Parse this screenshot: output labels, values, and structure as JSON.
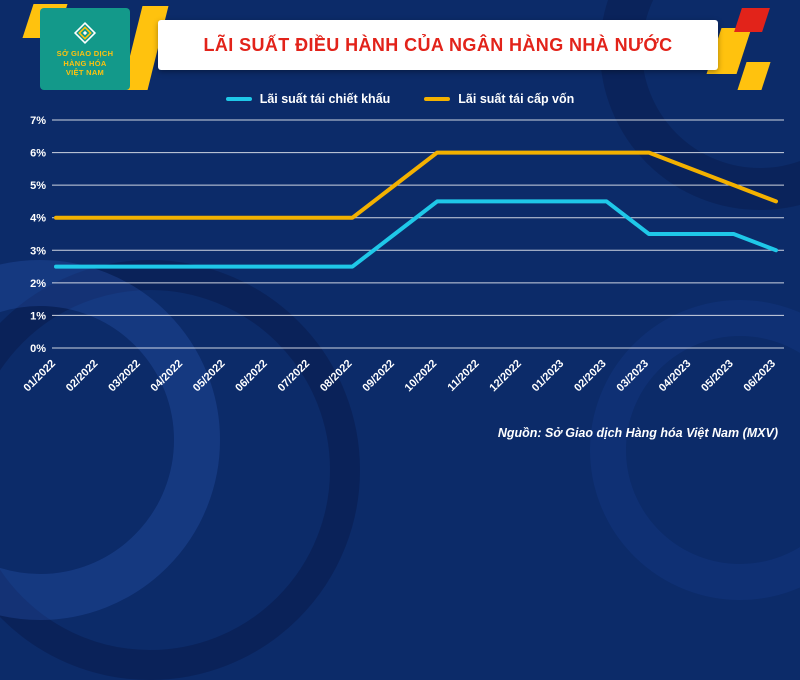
{
  "header": {
    "title": "LÃI SUẤT ĐIỀU HÀNH CỦA NGÂN HÀNG NHÀ NƯỚC",
    "logo": {
      "line1": "SỞ GIAO DỊCH",
      "line2": "HÀNG HÓA",
      "line3": "VIỆT NAM"
    }
  },
  "legend": [
    {
      "label": "Lãi suất tái chiết khấu",
      "color": "#1fc8e8"
    },
    {
      "label": "Lãi suất tái cấp vốn",
      "color": "#f3b100"
    }
  ],
  "source": "Nguồn: Sở Giao dịch Hàng hóa Việt Nam (MXV)",
  "colors": {
    "background": "#0c2b69",
    "title_text": "#e2231a",
    "accent_yellow": "#ffc20e",
    "logo_teal": "#13998a",
    "series_cyan": "#1fc8e8",
    "series_yellow": "#f3b100",
    "grid": "rgba(255,255,255,0.8)",
    "tick_text": "#ffffff"
  },
  "chart_data": {
    "type": "line",
    "x": [
      "01/2022",
      "02/2022",
      "03/2022",
      "04/2022",
      "05/2022",
      "06/2022",
      "07/2022",
      "08/2022",
      "09/2022",
      "10/2022",
      "11/2022",
      "12/2022",
      "01/2023",
      "02/2023",
      "03/2023",
      "04/2023",
      "05/2023",
      "06/2023"
    ],
    "series": [
      {
        "name": "Lãi suất tái chiết khấu",
        "color": "#1fc8e8",
        "values": [
          2.5,
          2.5,
          2.5,
          2.5,
          2.5,
          2.5,
          2.5,
          2.5,
          3.5,
          4.5,
          4.5,
          4.5,
          4.5,
          4.5,
          3.5,
          3.5,
          3.5,
          3.0
        ]
      },
      {
        "name": "Lãi suất tái cấp vốn",
        "color": "#f3b100",
        "values": [
          4.0,
          4.0,
          4.0,
          4.0,
          4.0,
          4.0,
          4.0,
          4.0,
          5.0,
          6.0,
          6.0,
          6.0,
          6.0,
          6.0,
          6.0,
          5.5,
          5.0,
          4.5
        ]
      }
    ],
    "ylim": [
      0,
      7
    ],
    "yticks": [
      "0%",
      "1%",
      "2%",
      "3%",
      "4%",
      "5%",
      "6%",
      "7%"
    ],
    "grid": true,
    "legend_position": "top",
    "title": "LÃI SUẤT ĐIỀU HÀNH CỦA NGÂN HÀNG NHÀ NƯỚC"
  }
}
